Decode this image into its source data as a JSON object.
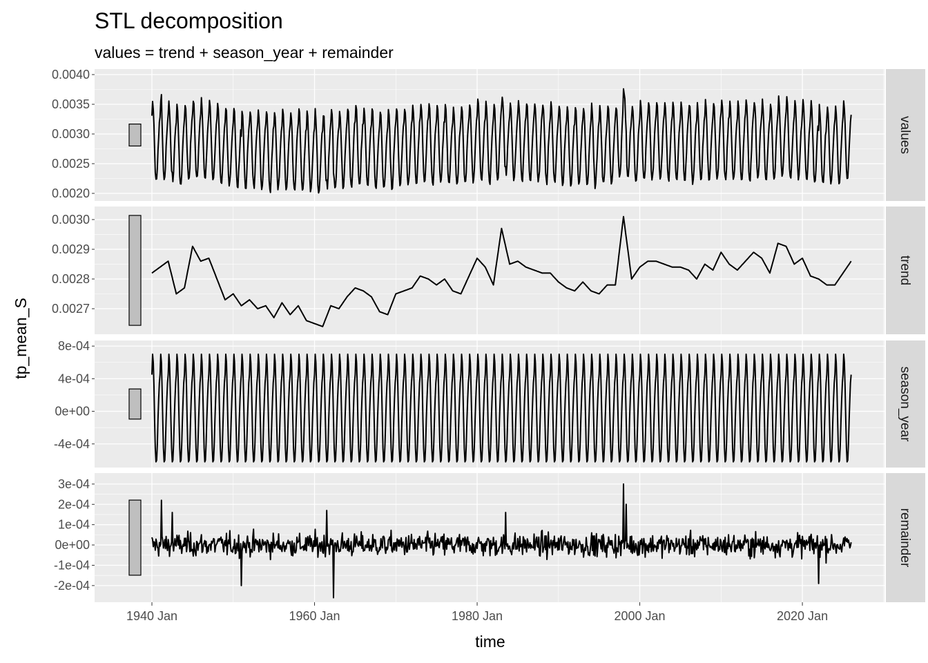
{
  "chart_data": {
    "type": "line",
    "title": "STL decomposition",
    "subtitle": "values = trend + season_year + remainder",
    "xlabel": "time",
    "ylabel": "tp_mean_S",
    "x_ticks": [
      "1940 Jan",
      "1960 Jan",
      "1980 Jan",
      "2000 Jan",
      "2020 Jan"
    ],
    "x_tick_years": [
      1940,
      1960,
      1980,
      2000,
      2020
    ],
    "xlim": [
      1932.95,
      2030.1
    ],
    "x_range": [
      1940,
      2026
    ],
    "panels": [
      {
        "name": "values",
        "ylim": [
          0.001872,
          0.004093
        ],
        "ticks": [
          0.002,
          0.0025,
          0.003,
          0.0035,
          0.004
        ],
        "tick_labels": [
          "0.0020",
          "0.0025",
          "0.0030",
          "0.0035",
          "0.0040"
        ]
      },
      {
        "name": "trend",
        "ylim": [
          0.002614,
          0.003044
        ],
        "ticks": [
          0.0027,
          0.0028,
          0.0029,
          0.003
        ],
        "tick_labels": [
          "0.0027",
          "0.0028",
          "0.0029",
          "0.0030"
        ]
      },
      {
        "name": "season_year",
        "ylim": [
          -0.00069,
          0.000869
        ],
        "ticks": [
          -0.0004,
          0,
          0.0004,
          0.0008
        ],
        "tick_labels": [
          "-4e-04",
          "0e+00",
          "4e-04",
          "8e-04"
        ]
      },
      {
        "name": "remainder",
        "ylim": [
          -0.000282,
          0.000354
        ],
        "ticks": [
          -0.0002,
          -0.0001,
          0,
          0.0001,
          0.0002,
          0.0003
        ],
        "tick_labels": [
          "-2e-04",
          "-1e-04",
          "0e+00",
          "1e-04",
          "2e-04",
          "3e-04"
        ]
      }
    ],
    "trend": {
      "years": [
        1940,
        1941,
        1942,
        1943,
        1944,
        1945,
        1946,
        1947,
        1948,
        1949,
        1950,
        1951,
        1952,
        1953,
        1954,
        1955,
        1956,
        1957,
        1958,
        1959,
        1960,
        1961,
        1962,
        1963,
        1964,
        1965,
        1966,
        1967,
        1968,
        1969,
        1970,
        1971,
        1972,
        1973,
        1974,
        1975,
        1976,
        1977,
        1978,
        1979,
        1980,
        1981,
        1982,
        1983,
        1984,
        1985,
        1986,
        1987,
        1988,
        1989,
        1990,
        1991,
        1992,
        1993,
        1994,
        1995,
        1996,
        1997,
        1998,
        1999,
        2000,
        2001,
        2002,
        2003,
        2004,
        2005,
        2006,
        2007,
        2008,
        2009,
        2010,
        2011,
        2012,
        2013,
        2014,
        2015,
        2016,
        2017,
        2018,
        2019,
        2020,
        2021,
        2022,
        2023,
        2024,
        2025,
        2026
      ],
      "values": [
        0.00282,
        0.00284,
        0.00286,
        0.00275,
        0.00277,
        0.00291,
        0.00286,
        0.00287,
        0.0028,
        0.00273,
        0.00275,
        0.00271,
        0.00273,
        0.0027,
        0.00271,
        0.00267,
        0.00272,
        0.00268,
        0.00271,
        0.00266,
        0.00265,
        0.00264,
        0.00271,
        0.0027,
        0.00274,
        0.00277,
        0.00276,
        0.00274,
        0.00269,
        0.00268,
        0.00275,
        0.00276,
        0.00277,
        0.00281,
        0.0028,
        0.00278,
        0.0028,
        0.00276,
        0.00275,
        0.00281,
        0.00287,
        0.00284,
        0.00278,
        0.00297,
        0.00285,
        0.00286,
        0.00284,
        0.00283,
        0.00282,
        0.00282,
        0.00279,
        0.00277,
        0.00276,
        0.00279,
        0.00276,
        0.00275,
        0.00278,
        0.00278,
        0.00301,
        0.0028,
        0.00284,
        0.00286,
        0.00286,
        0.00285,
        0.00284,
        0.00284,
        0.00283,
        0.0028,
        0.00285,
        0.00283,
        0.00289,
        0.00285,
        0.00283,
        0.00286,
        0.00289,
        0.00287,
        0.00282,
        0.00292,
        0.00291,
        0.00285,
        0.00287,
        0.00281,
        0.0028,
        0.00278,
        0.00278,
        0.00282,
        0.00286
      ]
    },
    "season_year_monthly": [
      0.00045,
      0.0007,
      0.0006,
      0.0003,
      -0.0001,
      -0.00045,
      -0.00062,
      -0.0006,
      -0.0004,
      -0.0001,
      0.00015,
      0.00035
    ],
    "remainder_spikes": [
      {
        "time": 1941.2,
        "value": 0.00022
      },
      {
        "time": 1942.5,
        "value": 0.00016
      },
      {
        "time": 1951.0,
        "value": -0.0002
      },
      {
        "time": 1961.5,
        "value": 0.00017
      },
      {
        "time": 1962.3,
        "value": -0.00026
      },
      {
        "time": 1983.5,
        "value": 0.00016
      },
      {
        "time": 1998.0,
        "value": 0.0003
      },
      {
        "time": 1998.3,
        "value": 0.0002
      },
      {
        "time": 2022.0,
        "value": -0.00019
      }
    ],
    "remainder_noise_sd": 4e-05,
    "grid": true,
    "colors": {
      "panel_bg": "#ebebeb",
      "strip_bg": "#d9d9d9",
      "line": "#000000",
      "range_bar": "#bfbfbf"
    }
  }
}
